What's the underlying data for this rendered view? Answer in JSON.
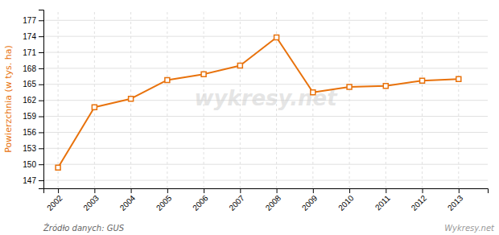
{
  "chart_data": {
    "type": "line",
    "x": [
      2002,
      2003,
      2004,
      2005,
      2006,
      2007,
      2008,
      2009,
      2010,
      2011,
      2012,
      2013
    ],
    "values": [
      149.4,
      160.7,
      162.3,
      165.8,
      166.9,
      168.5,
      173.8,
      163.5,
      164.5,
      164.7,
      165.7,
      166.0
    ],
    "color": "#e8720c",
    "marker": "square",
    "ylabel": "Powierzchnia (w tys. ha)",
    "xlim": [
      2001.6,
      2013.8
    ],
    "xticks": [
      2002,
      2003,
      2004,
      2005,
      2006,
      2007,
      2008,
      2009,
      2010,
      2011,
      2012,
      2013
    ],
    "ylim": [
      145.5,
      179.0
    ],
    "yticks": [
      147,
      150,
      153,
      156,
      159,
      162,
      165,
      168,
      171,
      174,
      177
    ],
    "grid": true,
    "annotations": [
      "wykresy.net",
      "Źródło danych:  GUS",
      "Wykresy.net"
    ]
  }
}
